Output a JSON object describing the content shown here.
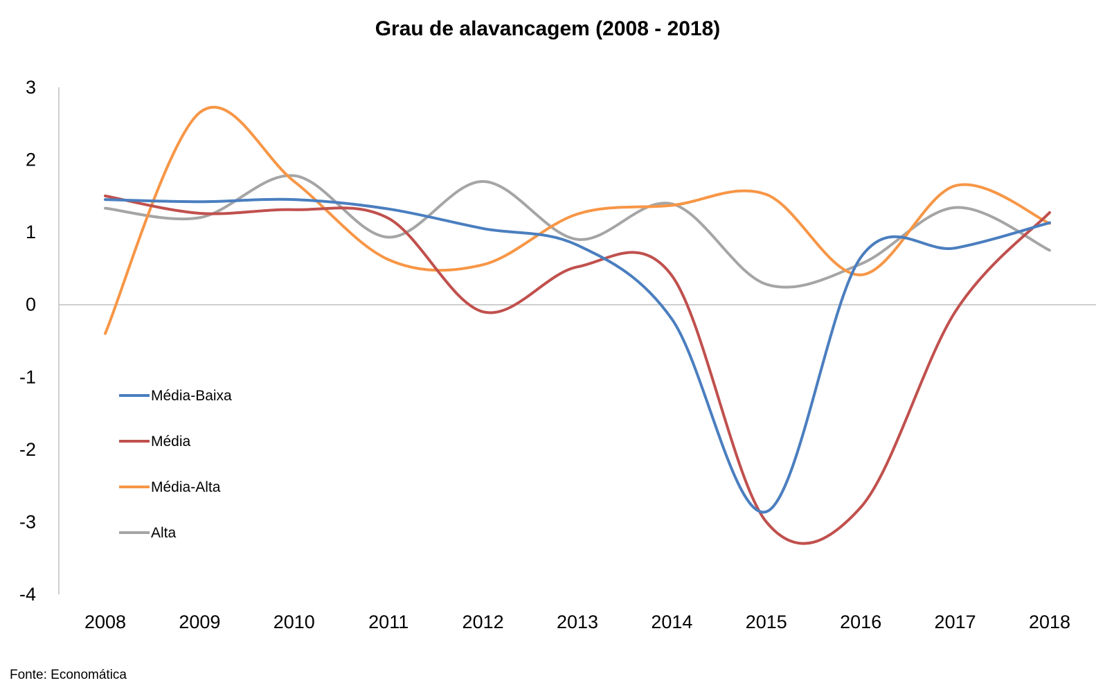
{
  "chart_data": {
    "type": "line",
    "title": "Grau de alavancagem (2008 - 2018)",
    "xlabel": "",
    "ylabel": "",
    "ylim": [
      -4,
      3
    ],
    "y_ticks": [
      "3",
      "2",
      "1",
      "0",
      "-1",
      "-2",
      "-3",
      "-4"
    ],
    "categories": [
      "2008",
      "2009",
      "2010",
      "2011",
      "2012",
      "2013",
      "2014",
      "2015",
      "2016",
      "2017",
      "2018"
    ],
    "series": [
      {
        "name": "Média-Baixa",
        "color": "#4a7ebf",
        "values": [
          1.45,
          1.42,
          1.45,
          1.32,
          1.05,
          0.82,
          -0.2,
          -2.86,
          0.65,
          0.78,
          1.13
        ]
      },
      {
        "name": "Média",
        "color": "#c0504d",
        "values": [
          1.5,
          1.26,
          1.31,
          1.19,
          -0.1,
          0.52,
          0.4,
          -3.0,
          -2.8,
          -0.1,
          1.27
        ]
      },
      {
        "name": "Média-Alta",
        "color": "#f79646",
        "values": [
          -0.4,
          2.65,
          1.7,
          0.62,
          0.55,
          1.25,
          1.37,
          1.52,
          0.41,
          1.64,
          1.12
        ]
      },
      {
        "name": "Alta",
        "color": "#a5a5a5",
        "values": [
          1.33,
          1.2,
          1.78,
          0.93,
          1.7,
          0.9,
          1.39,
          0.28,
          0.56,
          1.34,
          0.75
        ]
      }
    ],
    "legend_position": "left-center",
    "grid": false,
    "source": "Fonte: Economática"
  }
}
